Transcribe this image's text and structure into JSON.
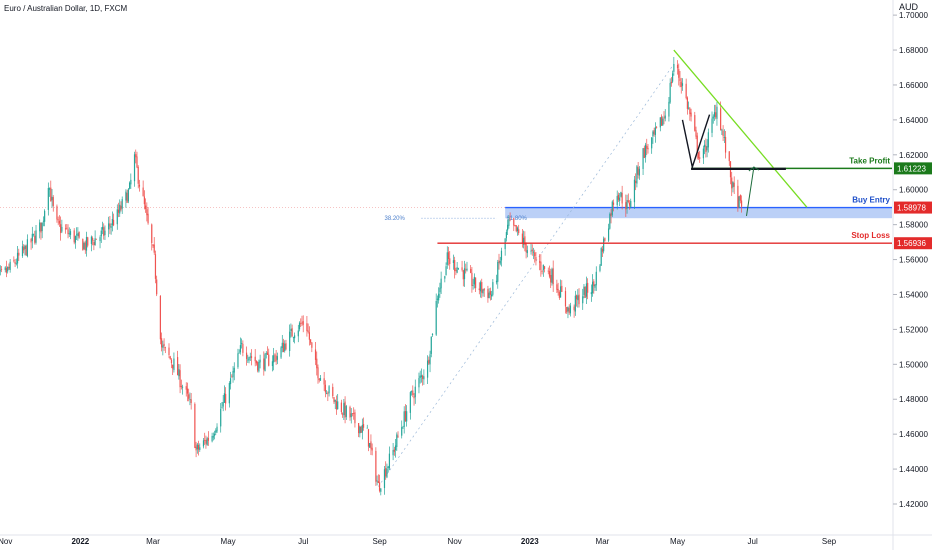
{
  "header": {
    "symbol_title": "Euro / Australian Dollar, 1D, FXCM",
    "price_unit": "AUD"
  },
  "chart_data": {
    "type": "candlestick",
    "title": "Euro / Australian Dollar, 1D, FXCM",
    "ylabel": "AUD",
    "ylim": [
      1.41,
      1.71
    ],
    "y_ticks": [
      "1.42000",
      "1.44000",
      "1.46000",
      "1.48000",
      "1.50000",
      "1.52000",
      "1.54000",
      "1.56000",
      "1.58000",
      "1.60000",
      "1.62000",
      "1.64000",
      "1.66000",
      "1.68000",
      "1.70000"
    ],
    "x_ticks": [
      {
        "label": "Nov",
        "date": "2021-11-01",
        "bold": false
      },
      {
        "label": "2022",
        "date": "2022-01-01",
        "bold": true
      },
      {
        "label": "Mar",
        "date": "2022-03-01",
        "bold": false
      },
      {
        "label": "May",
        "date": "2022-05-01",
        "bold": false
      },
      {
        "label": "Jul",
        "date": "2022-07-01",
        "bold": false
      },
      {
        "label": "Sep",
        "date": "2022-09-01",
        "bold": false
      },
      {
        "label": "Nov",
        "date": "2022-11-01",
        "bold": false
      },
      {
        "label": "2023",
        "date": "2023-01-01",
        "bold": true
      },
      {
        "label": "Mar",
        "date": "2023-03-01",
        "bold": false
      },
      {
        "label": "May",
        "date": "2023-05-01",
        "bold": false
      },
      {
        "label": "Jul",
        "date": "2023-07-01",
        "bold": false
      },
      {
        "label": "Sep",
        "date": "2023-09-01",
        "bold": false
      }
    ],
    "price_path": [
      [
        "2021-10-20",
        1.545
      ],
      [
        "2021-11-05",
        1.555
      ],
      [
        "2021-11-20",
        1.568
      ],
      [
        "2021-12-01",
        1.58
      ],
      [
        "2021-12-06",
        1.605
      ],
      [
        "2021-12-12",
        1.58
      ],
      [
        "2021-12-22",
        1.575
      ],
      [
        "2022-01-05",
        1.568
      ],
      [
        "2022-01-20",
        1.575
      ],
      [
        "2022-01-31",
        1.585
      ],
      [
        "2022-02-10",
        1.6
      ],
      [
        "2022-02-14",
        1.618
      ],
      [
        "2022-02-22",
        1.59
      ],
      [
        "2022-03-02",
        1.56
      ],
      [
        "2022-03-08",
        1.51
      ],
      [
        "2022-03-18",
        1.5
      ],
      [
        "2022-04-01",
        1.475
      ],
      [
        "2022-04-05",
        1.45
      ],
      [
        "2022-04-18",
        1.46
      ],
      [
        "2022-05-01",
        1.485
      ],
      [
        "2022-05-12",
        1.51
      ],
      [
        "2022-05-26",
        1.5
      ],
      [
        "2022-06-10",
        1.505
      ],
      [
        "2022-06-24",
        1.52
      ],
      [
        "2022-07-03",
        1.525
      ],
      [
        "2022-07-10",
        1.5
      ],
      [
        "2022-07-25",
        1.48
      ],
      [
        "2022-08-08",
        1.47
      ],
      [
        "2022-08-22",
        1.46
      ],
      [
        "2022-08-31",
        1.43
      ],
      [
        "2022-09-12",
        1.45
      ],
      [
        "2022-09-26",
        1.48
      ],
      [
        "2022-10-10",
        1.5
      ],
      [
        "2022-10-18",
        1.54
      ],
      [
        "2022-10-26",
        1.56
      ],
      [
        "2022-11-05",
        1.555
      ],
      [
        "2022-11-18",
        1.545
      ],
      [
        "2022-12-01",
        1.54
      ],
      [
        "2022-12-08",
        1.56
      ],
      [
        "2022-12-15",
        1.58
      ],
      [
        "2022-12-22",
        1.575
      ],
      [
        "2023-01-05",
        1.56
      ],
      [
        "2023-01-20",
        1.55
      ],
      [
        "2023-02-02",
        1.53
      ],
      [
        "2023-02-12",
        1.54
      ],
      [
        "2023-02-22",
        1.545
      ],
      [
        "2023-03-02",
        1.57
      ],
      [
        "2023-03-12",
        1.6
      ],
      [
        "2023-03-22",
        1.59
      ],
      [
        "2023-04-02",
        1.62
      ],
      [
        "2023-04-12",
        1.63
      ],
      [
        "2023-04-22",
        1.645
      ],
      [
        "2023-04-28",
        1.672
      ],
      [
        "2023-05-05",
        1.66
      ],
      [
        "2023-05-12",
        1.64
      ],
      [
        "2023-05-20",
        1.615
      ],
      [
        "2023-05-30",
        1.64
      ],
      [
        "2023-06-02",
        1.648
      ],
      [
        "2023-06-10",
        1.62
      ],
      [
        "2023-06-15",
        1.6
      ],
      [
        "2023-06-22",
        1.589
      ]
    ],
    "annotations": {
      "take_profit": {
        "label": "Take Profit",
        "price_label": "1.61223",
        "value": 1.61223,
        "start": "2023-05-12",
        "color": "#1b7a1b"
      },
      "buy_entry": {
        "label": "Buy Entry",
        "price_label": "1.58978",
        "value": 1.58978,
        "start": "2022-12-12",
        "color": "#2962ff",
        "zone_low": 1.5837,
        "zone_high": 1.58978
      },
      "stop_loss": {
        "label": "Stop Loss",
        "price_label": "1.56936",
        "value": 1.56936,
        "start": "2022-10-18",
        "color": "#e32b2b"
      },
      "fib_left_label": "38.20%",
      "fib_mid_label": "61.80%",
      "fib_left_date": "2022-09-05",
      "fib_right_date": "2022-12-05",
      "fib_price": 1.5837,
      "trendline": {
        "from": [
          "2023-04-28",
          1.68
        ],
        "to": [
          "2023-08-14",
          1.59
        ],
        "color": "#77dd22"
      },
      "diagonal": {
        "from": [
          "2022-08-31",
          1.43
        ],
        "to": [
          "2023-04-28",
          1.672
        ]
      },
      "pattern_path": [
        [
          "2023-05-05",
          1.64
        ],
        [
          "2023-05-13",
          1.613
        ],
        [
          "2023-05-27",
          1.643
        ]
      ],
      "projection_arrow": {
        "from": [
          "2023-06-26",
          1.585
        ],
        "to": [
          "2023-07-02",
          1.613
        ]
      },
      "current_price": 1.58978
    }
  }
}
